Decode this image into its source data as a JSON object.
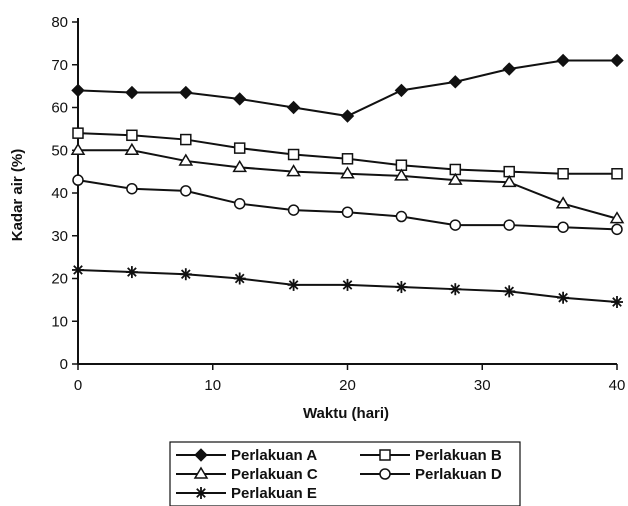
{
  "chart_data": {
    "type": "line",
    "title": "",
    "xlabel": "Waktu (hari)",
    "ylabel": "Kadar air (%)",
    "xlim": [
      0,
      40
    ],
    "ylim": [
      0,
      80
    ],
    "x_ticks": [
      0,
      10,
      20,
      30,
      40
    ],
    "y_ticks": [
      0,
      10,
      20,
      30,
      40,
      50,
      60,
      70,
      80
    ],
    "grid": false,
    "legend_position": "bottom",
    "x": [
      0,
      4,
      8,
      12,
      16,
      20,
      24,
      28,
      32,
      36,
      40
    ],
    "series": [
      {
        "name": "Perlakuan A",
        "marker": "filled-diamond",
        "values": [
          64,
          63.5,
          63.5,
          62,
          60,
          58,
          64,
          66,
          69,
          71,
          71
        ]
      },
      {
        "name": "Perlakuan B",
        "marker": "open-square",
        "values": [
          54,
          53.5,
          52.5,
          50.5,
          49,
          48,
          46.5,
          45.5,
          45,
          44.5,
          44.5
        ]
      },
      {
        "name": "Perlakuan C",
        "marker": "open-triangle",
        "values": [
          50,
          50,
          47.5,
          46,
          45,
          44.5,
          44,
          43,
          42.5,
          37.5,
          34
        ]
      },
      {
        "name": "Perlakuan D",
        "marker": "open-circle",
        "values": [
          43,
          41,
          40.5,
          37.5,
          36,
          35.5,
          34.5,
          32.5,
          32.5,
          32,
          31.5
        ]
      },
      {
        "name": "Perlakuan E",
        "marker": "asterisk",
        "values": [
          22,
          21.5,
          21,
          20,
          18.5,
          18.5,
          18,
          17.5,
          17,
          15.5,
          14.5
        ]
      }
    ]
  }
}
